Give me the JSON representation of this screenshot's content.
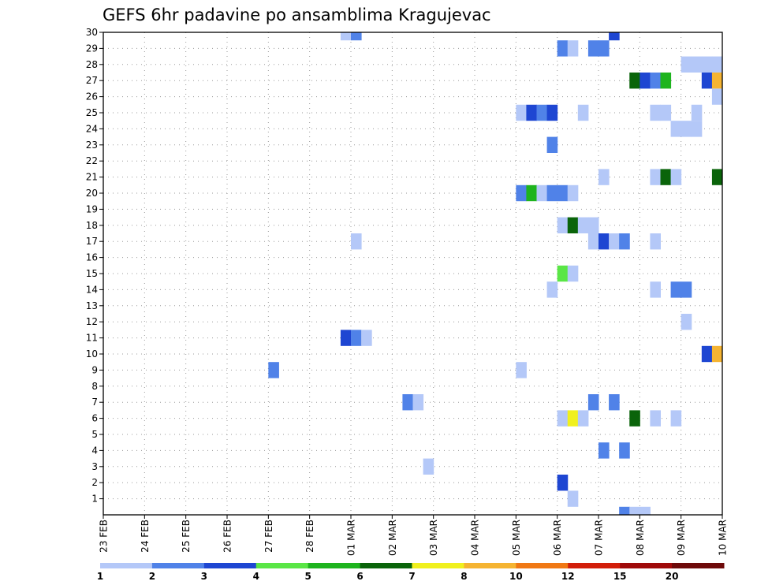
{
  "chart_data": {
    "type": "heatmap",
    "title": "GEFS 6hr padavine po ansamblima Kragujevac",
    "x_ticks": [
      "23 FEB",
      "24 FEB",
      "25 FEB",
      "26 FEB",
      "27 FEB",
      "28 FEB",
      "01 MAR",
      "02 MAR",
      "03 MAR",
      "04 MAR",
      "05 MAR",
      "06 MAR",
      "07 MAR",
      "08 MAR",
      "09 MAR",
      "10 MAR"
    ],
    "y_ticks": [
      1,
      2,
      3,
      4,
      5,
      6,
      7,
      8,
      9,
      10,
      11,
      12,
      13,
      14,
      15,
      16,
      17,
      18,
      19,
      20,
      21,
      22,
      23,
      24,
      25,
      26,
      27,
      28,
      29,
      30
    ],
    "x_unit": "6h steps from 23 FEB 00Z",
    "xlim": [
      0,
      60
    ],
    "ylim": [
      0,
      30
    ],
    "grid": true,
    "color_scale": {
      "boundaries": [
        "1",
        "2",
        "3",
        "4",
        "5",
        "6",
        "7",
        "8",
        "10",
        "12",
        "15",
        "20"
      ],
      "colors": [
        "#b4c8f8",
        "#5082e8",
        "#1e46d2",
        "#5ae646",
        "#1eb41e",
        "#0a640a",
        "#f0f01e",
        "#f5b432",
        "#f07814",
        "#d21e0a",
        "#a00a0a",
        "#6e0a0a"
      ]
    },
    "cells": [
      {
        "member": 30,
        "step": 23,
        "class": 0
      },
      {
        "member": 30,
        "step": 24,
        "class": 1
      },
      {
        "member": 30,
        "step": 49,
        "class": 2
      },
      {
        "member": 29,
        "step": 44,
        "class": 1
      },
      {
        "member": 29,
        "step": 45,
        "class": 0
      },
      {
        "member": 29,
        "step": 47,
        "class": 1
      },
      {
        "member": 29,
        "step": 48,
        "class": 1
      },
      {
        "member": 28,
        "step": 56,
        "class": 0
      },
      {
        "member": 28,
        "step": 57,
        "class": 0
      },
      {
        "member": 28,
        "step": 58,
        "class": 0
      },
      {
        "member": 28,
        "step": 59,
        "class": 0
      },
      {
        "member": 27,
        "step": 51,
        "class": 5
      },
      {
        "member": 27,
        "step": 52,
        "class": 2
      },
      {
        "member": 27,
        "step": 53,
        "class": 1
      },
      {
        "member": 27,
        "step": 54,
        "class": 4
      },
      {
        "member": 27,
        "step": 58,
        "class": 2
      },
      {
        "member": 27,
        "step": 59,
        "class": 7
      },
      {
        "member": 26,
        "step": 59,
        "class": 0
      },
      {
        "member": 25,
        "step": 40,
        "class": 0
      },
      {
        "member": 25,
        "step": 41,
        "class": 2
      },
      {
        "member": 25,
        "step": 42,
        "class": 1
      },
      {
        "member": 25,
        "step": 43,
        "class": 2
      },
      {
        "member": 25,
        "step": 46,
        "class": 0
      },
      {
        "member": 25,
        "step": 53,
        "class": 0
      },
      {
        "member": 25,
        "step": 54,
        "class": 0
      },
      {
        "member": 25,
        "step": 57,
        "class": 0
      },
      {
        "member": 24,
        "step": 55,
        "class": 0
      },
      {
        "member": 24,
        "step": 56,
        "class": 0
      },
      {
        "member": 24,
        "step": 57,
        "class": 0
      },
      {
        "member": 23,
        "step": 43,
        "class": 1
      },
      {
        "member": 21,
        "step": 48,
        "class": 0
      },
      {
        "member": 21,
        "step": 53,
        "class": 0
      },
      {
        "member": 21,
        "step": 54,
        "class": 5
      },
      {
        "member": 21,
        "step": 55,
        "class": 0
      },
      {
        "member": 21,
        "step": 59,
        "class": 5
      },
      {
        "member": 20,
        "step": 40,
        "class": 1
      },
      {
        "member": 20,
        "step": 41,
        "class": 4
      },
      {
        "member": 20,
        "step": 42,
        "class": 0
      },
      {
        "member": 20,
        "step": 43,
        "class": 1
      },
      {
        "member": 20,
        "step": 44,
        "class": 1
      },
      {
        "member": 20,
        "step": 45,
        "class": 0
      },
      {
        "member": 18,
        "step": 44,
        "class": 0
      },
      {
        "member": 18,
        "step": 45,
        "class": 5
      },
      {
        "member": 18,
        "step": 46,
        "class": 0
      },
      {
        "member": 18,
        "step": 47,
        "class": 0
      },
      {
        "member": 17,
        "step": 24,
        "class": 0
      },
      {
        "member": 17,
        "step": 47,
        "class": 0
      },
      {
        "member": 17,
        "step": 48,
        "class": 2
      },
      {
        "member": 17,
        "step": 49,
        "class": 0
      },
      {
        "member": 17,
        "step": 50,
        "class": 1
      },
      {
        "member": 17,
        "step": 53,
        "class": 0
      },
      {
        "member": 15,
        "step": 44,
        "class": 3
      },
      {
        "member": 15,
        "step": 45,
        "class": 0
      },
      {
        "member": 14,
        "step": 43,
        "class": 0
      },
      {
        "member": 14,
        "step": 53,
        "class": 0
      },
      {
        "member": 14,
        "step": 55,
        "class": 1
      },
      {
        "member": 14,
        "step": 56,
        "class": 1
      },
      {
        "member": 12,
        "step": 56,
        "class": 0
      },
      {
        "member": 11,
        "step": 23,
        "class": 2
      },
      {
        "member": 11,
        "step": 24,
        "class": 1
      },
      {
        "member": 11,
        "step": 25,
        "class": 0
      },
      {
        "member": 10,
        "step": 58,
        "class": 2
      },
      {
        "member": 10,
        "step": 59,
        "class": 7
      },
      {
        "member": 9,
        "step": 16,
        "class": 1
      },
      {
        "member": 9,
        "step": 40,
        "class": 0
      },
      {
        "member": 7,
        "step": 29,
        "class": 1
      },
      {
        "member": 7,
        "step": 30,
        "class": 0
      },
      {
        "member": 7,
        "step": 47,
        "class": 1
      },
      {
        "member": 7,
        "step": 49,
        "class": 1
      },
      {
        "member": 6,
        "step": 44,
        "class": 0
      },
      {
        "member": 6,
        "step": 45,
        "class": 6
      },
      {
        "member": 6,
        "step": 46,
        "class": 0
      },
      {
        "member": 6,
        "step": 51,
        "class": 5
      },
      {
        "member": 6,
        "step": 53,
        "class": 0
      },
      {
        "member": 6,
        "step": 55,
        "class": 0
      },
      {
        "member": 4,
        "step": 48,
        "class": 1
      },
      {
        "member": 4,
        "step": 50,
        "class": 1
      },
      {
        "member": 3,
        "step": 31,
        "class": 0
      },
      {
        "member": 2,
        "step": 44,
        "class": 2
      },
      {
        "member": 1,
        "step": 45,
        "class": 0
      },
      {
        "member": 0,
        "step": 50,
        "class": 1
      },
      {
        "member": 0,
        "step": 51,
        "class": 0
      },
      {
        "member": 0,
        "step": 52,
        "class": 0
      }
    ]
  }
}
